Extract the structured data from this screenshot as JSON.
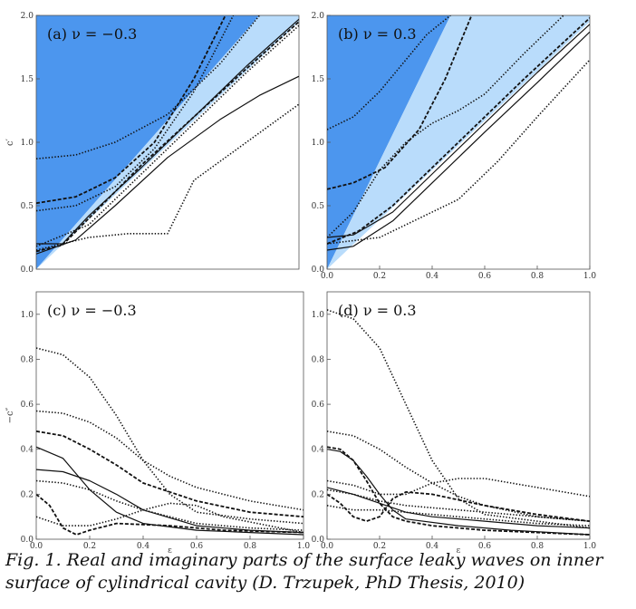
{
  "caption": "Fig. 1. Real and imaginary parts of the surface leaky waves on inner surface of cylindrical cavity (D. Trzupek, PhD Thesis, 2010)",
  "colors": {
    "dark_region": "#4c96ee",
    "light_region": "#b9dcfb",
    "curve": "#111111"
  },
  "chart_data": [
    {
      "type": "line",
      "label": "(a) ν = −0.3",
      "ylabel": "c′",
      "xlim": [
        0,
        1
      ],
      "ylim": [
        0,
        2
      ],
      "xticks": [],
      "yticks": [
        "0.0",
        "0.5",
        "1.0",
        "1.5",
        "2.0"
      ],
      "regions": [
        {
          "color": "dark",
          "points": [
            [
              0,
              0
            ],
            [
              0.85,
              2.0
            ],
            [
              0,
              2.0
            ]
          ]
        },
        {
          "color": "light",
          "points": [
            [
              0,
              0
            ],
            [
              1.0,
              1.95
            ],
            [
              1.0,
              2.0
            ],
            [
              0.85,
              2.0
            ]
          ]
        }
      ],
      "series": [
        {
          "style": "solid",
          "x": [
            0,
            0.15,
            0.3,
            0.5,
            0.7,
            0.85,
            1.0
          ],
          "y": [
            0.12,
            0.23,
            0.5,
            0.88,
            1.18,
            1.37,
            1.52
          ]
        },
        {
          "style": "solid",
          "x": [
            0,
            0.1,
            0.2,
            0.4,
            0.6,
            0.8,
            1.0
          ],
          "y": [
            0.2,
            0.2,
            0.42,
            0.8,
            1.2,
            1.6,
            1.97
          ]
        },
        {
          "style": "dashed",
          "x": [
            0,
            0.1,
            0.2,
            0.4,
            0.6,
            0.8,
            1.0
          ],
          "y": [
            0.14,
            0.19,
            0.4,
            0.82,
            1.2,
            1.58,
            1.95
          ]
        },
        {
          "style": "dashed",
          "x": [
            0,
            0.15,
            0.3,
            0.45,
            0.6,
            0.72
          ],
          "y": [
            0.52,
            0.57,
            0.72,
            1.0,
            1.5,
            2.0
          ]
        },
        {
          "style": "dotted",
          "x": [
            0,
            0.15,
            0.3,
            0.5,
            0.7,
            0.85
          ],
          "y": [
            0.87,
            0.9,
            1.0,
            1.22,
            1.62,
            2.0
          ]
        },
        {
          "style": "dotted",
          "x": [
            0,
            0.15,
            0.3,
            0.45,
            0.6,
            0.75
          ],
          "y": [
            0.46,
            0.5,
            0.65,
            0.95,
            1.4,
            2.0
          ]
        },
        {
          "style": "dotted",
          "x": [
            0,
            0.2,
            0.35,
            0.5,
            0.6,
            0.8,
            1.0
          ],
          "y": [
            0.15,
            0.25,
            0.28,
            0.28,
            0.7,
            1.0,
            1.3
          ]
        },
        {
          "style": "dotted",
          "x": [
            0,
            0.2,
            0.4,
            0.6,
            0.8,
            1.0
          ],
          "y": [
            0.18,
            0.35,
            0.75,
            1.15,
            1.55,
            1.92
          ]
        }
      ]
    },
    {
      "type": "line",
      "label": "(b) ν = 0.3",
      "ylabel": "",
      "xlim": [
        0,
        1
      ],
      "ylim": [
        0,
        2
      ],
      "xticks": [
        "0.0",
        "0.2",
        "0.4",
        "0.6",
        "0.8",
        "1.0"
      ],
      "yticks": [
        "0.0",
        "0.5",
        "1.0",
        "1.5",
        "2.0"
      ],
      "regions": [
        {
          "color": "dark",
          "points": [
            [
              0,
              0
            ],
            [
              0.47,
              2.0
            ],
            [
              0,
              2.0
            ]
          ]
        },
        {
          "color": "light",
          "points": [
            [
              0,
              0
            ],
            [
              1.0,
              1.95
            ],
            [
              1.0,
              2.0
            ],
            [
              0.47,
              2.0
            ]
          ]
        }
      ],
      "series": [
        {
          "style": "solid",
          "x": [
            0,
            0.1,
            0.25,
            0.4,
            0.6,
            0.8,
            1.0
          ],
          "y": [
            0.15,
            0.18,
            0.38,
            0.68,
            1.08,
            1.47,
            1.87
          ]
        },
        {
          "style": "solid",
          "x": [
            0,
            0.1,
            0.25,
            0.4,
            0.6,
            0.8,
            1.0
          ],
          "y": [
            0.25,
            0.27,
            0.45,
            0.75,
            1.15,
            1.55,
            1.93
          ]
        },
        {
          "style": "dashed",
          "x": [
            0,
            0.1,
            0.22,
            0.35,
            0.45,
            0.55
          ],
          "y": [
            0.63,
            0.68,
            0.8,
            1.1,
            1.5,
            2.0
          ]
        },
        {
          "style": "dashed",
          "x": [
            0,
            0.12,
            0.25,
            0.5,
            0.75,
            1.0
          ],
          "y": [
            0.2,
            0.3,
            0.5,
            1.0,
            1.5,
            1.98
          ]
        },
        {
          "style": "dotted",
          "x": [
            0,
            0.1,
            0.2,
            0.3,
            0.38,
            0.47
          ],
          "y": [
            1.1,
            1.2,
            1.4,
            1.65,
            1.85,
            2.0
          ]
        },
        {
          "style": "dotted",
          "x": [
            0,
            0.1,
            0.2,
            0.3,
            0.4,
            0.5,
            0.6,
            0.75,
            0.9
          ],
          "y": [
            0.25,
            0.45,
            0.78,
            1.0,
            1.15,
            1.25,
            1.38,
            1.7,
            2.0
          ]
        },
        {
          "style": "dotted",
          "x": [
            0,
            0.2,
            0.35,
            0.5,
            0.65,
            0.8,
            1.0
          ],
          "y": [
            0.2,
            0.25,
            0.4,
            0.55,
            0.85,
            1.2,
            1.65
          ]
        }
      ]
    },
    {
      "type": "line",
      "label": "(c) ν = −0.3",
      "ylabel": "−c″",
      "xlabel": "ε",
      "xlim": [
        0,
        1
      ],
      "ylim": [
        0,
        1.1
      ],
      "xticks": [
        "0.0",
        "0.2",
        "0.4",
        "0.6",
        "0.8",
        "1.0"
      ],
      "yticks": [
        "0.0",
        "0.2",
        "0.4",
        "0.6",
        "0.8",
        "1.0"
      ],
      "series": [
        {
          "style": "solid",
          "x": [
            0,
            0.1,
            0.2,
            0.3,
            0.4,
            0.6,
            0.8,
            1.0
          ],
          "y": [
            0.41,
            0.36,
            0.22,
            0.12,
            0.07,
            0.04,
            0.03,
            0.02
          ]
        },
        {
          "style": "solid",
          "x": [
            0,
            0.1,
            0.2,
            0.3,
            0.4,
            0.6,
            0.8,
            1.0
          ],
          "y": [
            0.31,
            0.3,
            0.26,
            0.2,
            0.13,
            0.06,
            0.04,
            0.03
          ]
        },
        {
          "style": "dashed",
          "x": [
            0,
            0.1,
            0.2,
            0.3,
            0.4,
            0.6,
            0.8,
            1.0
          ],
          "y": [
            0.48,
            0.46,
            0.4,
            0.33,
            0.25,
            0.17,
            0.12,
            0.1
          ]
        },
        {
          "style": "dashed",
          "x": [
            0,
            0.05,
            0.1,
            0.15,
            0.2,
            0.3,
            0.5,
            0.7,
            1.0
          ],
          "y": [
            0.2,
            0.15,
            0.05,
            0.02,
            0.04,
            0.07,
            0.06,
            0.04,
            0.03
          ]
        },
        {
          "style": "dotted",
          "x": [
            0,
            0.1,
            0.2,
            0.3,
            0.4,
            0.5,
            0.6,
            0.8,
            1.0
          ],
          "y": [
            0.85,
            0.82,
            0.72,
            0.55,
            0.35,
            0.2,
            0.12,
            0.09,
            0.07
          ]
        },
        {
          "style": "dotted",
          "x": [
            0,
            0.1,
            0.2,
            0.3,
            0.4,
            0.5,
            0.6,
            0.8,
            1.0
          ],
          "y": [
            0.57,
            0.56,
            0.52,
            0.45,
            0.35,
            0.28,
            0.23,
            0.17,
            0.13
          ]
        },
        {
          "style": "dotted",
          "x": [
            0,
            0.1,
            0.2,
            0.3,
            0.4,
            0.5,
            0.6,
            0.8,
            1.0
          ],
          "y": [
            0.26,
            0.25,
            0.22,
            0.17,
            0.13,
            0.1,
            0.07,
            0.05,
            0.04
          ]
        },
        {
          "style": "dotted",
          "x": [
            0,
            0.1,
            0.2,
            0.3,
            0.4,
            0.5,
            0.6,
            0.7,
            1.0
          ],
          "y": [
            0.1,
            0.06,
            0.06,
            0.09,
            0.13,
            0.16,
            0.15,
            0.1,
            0.03
          ]
        }
      ]
    },
    {
      "type": "line",
      "label": "(d) ν = 0.3",
      "ylabel": "",
      "xlabel": "ε",
      "xlim": [
        0,
        1
      ],
      "ylim": [
        0,
        1.1
      ],
      "xticks": [
        "0.0",
        "0.2",
        "0.4",
        "0.6",
        "0.8",
        "1.0"
      ],
      "yticks": [
        "0.0",
        "0.2",
        "0.4",
        "0.6",
        "0.8",
        "1.0"
      ],
      "series": [
        {
          "style": "solid",
          "x": [
            0,
            0.05,
            0.1,
            0.15,
            0.2,
            0.25,
            0.3,
            0.5,
            0.7,
            1.0
          ],
          "y": [
            0.4,
            0.39,
            0.35,
            0.28,
            0.2,
            0.13,
            0.09,
            0.06,
            0.04,
            0.02
          ]
        },
        {
          "style": "solid",
          "x": [
            0,
            0.1,
            0.2,
            0.25,
            0.3,
            0.4,
            0.6,
            0.8,
            1.0
          ],
          "y": [
            0.23,
            0.2,
            0.16,
            0.14,
            0.12,
            0.1,
            0.08,
            0.06,
            0.05
          ]
        },
        {
          "style": "dashed",
          "x": [
            0,
            0.05,
            0.1,
            0.15,
            0.2,
            0.25,
            0.3,
            0.4,
            0.6,
            0.8,
            1.0
          ],
          "y": [
            0.41,
            0.4,
            0.35,
            0.26,
            0.16,
            0.1,
            0.08,
            0.06,
            0.04,
            0.03,
            0.02
          ]
        },
        {
          "style": "dashed",
          "x": [
            0,
            0.05,
            0.1,
            0.15,
            0.2,
            0.25,
            0.3,
            0.4,
            0.6,
            0.8,
            1.0
          ],
          "y": [
            0.2,
            0.16,
            0.1,
            0.08,
            0.1,
            0.18,
            0.21,
            0.2,
            0.15,
            0.11,
            0.08
          ]
        },
        {
          "style": "dotted",
          "x": [
            0,
            0.1,
            0.2,
            0.3,
            0.4,
            0.5,
            0.6,
            0.8,
            1.0
          ],
          "y": [
            1.02,
            0.98,
            0.85,
            0.6,
            0.35,
            0.18,
            0.11,
            0.08,
            0.05
          ]
        },
        {
          "style": "dotted",
          "x": [
            0,
            0.1,
            0.2,
            0.3,
            0.4,
            0.5,
            0.6,
            0.8,
            1.0
          ],
          "y": [
            0.48,
            0.46,
            0.4,
            0.32,
            0.25,
            0.19,
            0.15,
            0.1,
            0.08
          ]
        },
        {
          "style": "dotted",
          "x": [
            0,
            0.1,
            0.2,
            0.3,
            0.4,
            0.5,
            0.6,
            0.8,
            1.0
          ],
          "y": [
            0.26,
            0.24,
            0.2,
            0.2,
            0.25,
            0.27,
            0.27,
            0.23,
            0.19
          ]
        },
        {
          "style": "dotted",
          "x": [
            0,
            0.1,
            0.2,
            0.3,
            0.4,
            0.5,
            0.6,
            0.8,
            1.0
          ],
          "y": [
            0.22,
            0.2,
            0.17,
            0.15,
            0.14,
            0.13,
            0.12,
            0.1,
            0.08
          ]
        },
        {
          "style": "dotted",
          "x": [
            0,
            0.1,
            0.2,
            0.3,
            0.4,
            0.6,
            0.8,
            1.0
          ],
          "y": [
            0.15,
            0.13,
            0.13,
            0.12,
            0.11,
            0.09,
            0.07,
            0.06
          ]
        }
      ]
    }
  ]
}
